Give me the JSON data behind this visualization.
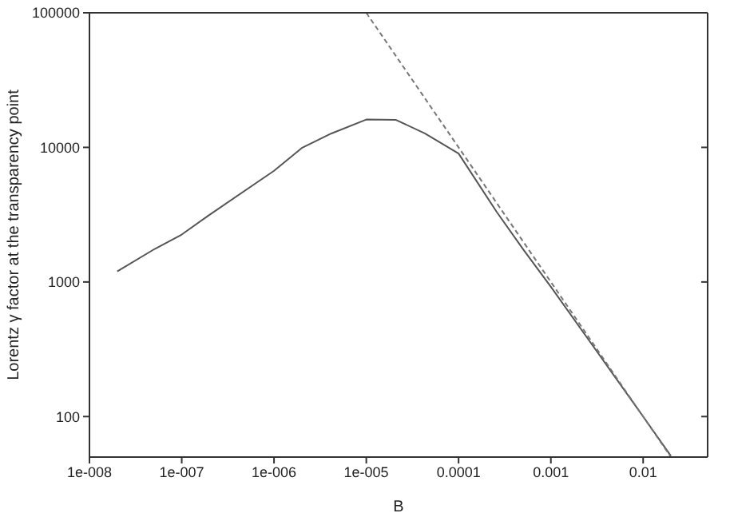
{
  "chart_data": {
    "type": "line",
    "xlabel": "B",
    "ylabel": "Lorentz γ factor at the transparency point",
    "log": "xy",
    "xlim": [
      1e-08,
      0.05
    ],
    "ylim": [
      50,
      100000
    ],
    "xticks": [
      {
        "value": 1e-08,
        "label": "1e-008"
      },
      {
        "value": 1e-07,
        "label": "1e-007"
      },
      {
        "value": 1e-06,
        "label": "1e-006"
      },
      {
        "value": 1e-05,
        "label": "1e-005"
      },
      0.0001,
      0.001,
      0.01
    ],
    "yticks": [
      100,
      1000,
      10000,
      100000
    ],
    "grid": false,
    "marker": "none",
    "series": [
      {
        "color": "#555555",
        "line_style": "solid",
        "x": [
          2e-08,
          5.1e-08,
          1e-07,
          1.9e-07,
          1e-06,
          2e-06,
          4.2e-06,
          1e-05,
          2.1e-05,
          4.3e-05,
          0.0001,
          0.00026,
          0.0005,
          0.001,
          0.003,
          0.01,
          0.02
        ],
        "values": [
          1200,
          1760,
          2250,
          3080,
          6700,
          9900,
          12700,
          16100,
          16000,
          12700,
          9000,
          3300,
          1750,
          920,
          320,
          100,
          51
        ]
      },
      {
        "color": "#777777",
        "line_style": "dashed",
        "x": [
          1e-05,
          0.02
        ],
        "values": [
          100000,
          50
        ]
      }
    ]
  }
}
